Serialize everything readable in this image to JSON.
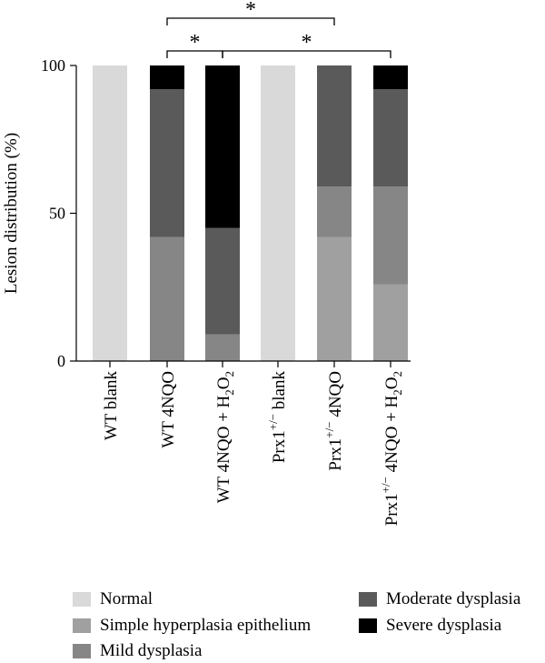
{
  "chart_data": {
    "type": "bar",
    "stacked": true,
    "title": "",
    "xlabel": "",
    "ylabel": "Lesion distribution (%)",
    "ylim": [
      0,
      100
    ],
    "yticks": [
      "0",
      "50",
      "100"
    ],
    "categories": [
      {
        "base": "WT blank",
        "sup": "",
        "rest": ""
      },
      {
        "base": "WT 4NQO",
        "sup": "",
        "rest": ""
      },
      {
        "base": "WT 4NQO + H",
        "sub": "2",
        "tail": "O",
        "sub2": "2"
      },
      {
        "base": "Prx1",
        "sup": "+/−",
        "rest": " blank"
      },
      {
        "base": "Prx1",
        "sup": "+/−",
        "rest": " 4NQO"
      },
      {
        "base": "Prx1",
        "sup": "+/−",
        "rest": " 4NQO + H",
        "sub": "2",
        "tail": "O",
        "sub2": "2"
      }
    ],
    "series": [
      {
        "name": "Normal",
        "color": "#d9d9d9",
        "values": [
          100,
          0,
          0,
          100,
          0,
          0
        ]
      },
      {
        "name": "Simple hyperplasia epithelium",
        "color": "#a0a0a0",
        "values": [
          0,
          0,
          0,
          0,
          42,
          26
        ]
      },
      {
        "name": "Mild dysplasia",
        "color": "#868686",
        "values": [
          0,
          42,
          9,
          0,
          17,
          33
        ]
      },
      {
        "name": "Moderate dysplasia",
        "color": "#5a5a5a",
        "values": [
          0,
          50,
          36,
          0,
          41,
          33
        ]
      },
      {
        "name": "Severe dysplasia",
        "color": "#000000",
        "values": [
          0,
          8,
          55,
          0,
          0,
          8
        ]
      }
    ],
    "significance": [
      {
        "from": 1,
        "to": 2,
        "label": "*",
        "level": 1
      },
      {
        "from": 2,
        "to": 5,
        "label": "*",
        "level": 1
      },
      {
        "from": 1,
        "to": 4,
        "label": "*",
        "level": 2
      }
    ]
  },
  "legend": {
    "items": [
      {
        "name": "Normal",
        "color": "#d9d9d9"
      },
      {
        "name": "Simple hyperplasia epithelium",
        "color": "#a0a0a0"
      },
      {
        "name": "Mild dysplasia",
        "color": "#868686"
      },
      {
        "name": "Moderate dysplasia",
        "color": "#5a5a5a"
      },
      {
        "name": "Severe dysplasia",
        "color": "#000000"
      }
    ]
  }
}
